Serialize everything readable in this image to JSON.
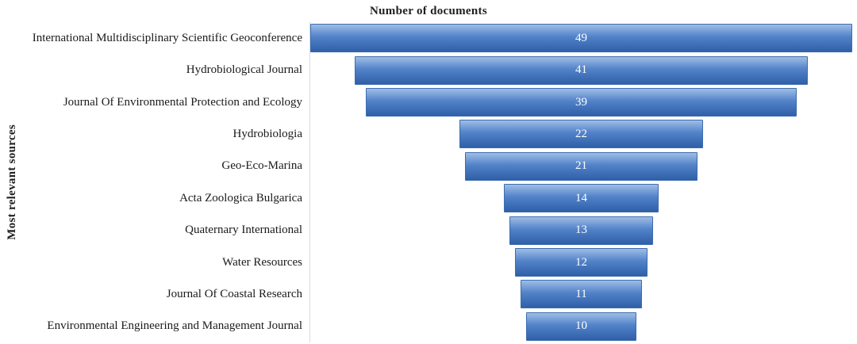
{
  "chart_data": {
    "type": "bar",
    "variant": "centered-funnel-horizontal-bars",
    "title": "Number of documents",
    "ylabel": "Most relevant sources",
    "xlabel": "",
    "categories": [
      "International Multidisciplinary Scientific Geoconference",
      "Hydrobiological Journal",
      "Journal Of Environmental Protection and Ecology",
      "Hydrobiologia",
      "Geo-Eco-Marina",
      "Acta Zoologica Bulgarica",
      "Quaternary International",
      "Water Resources",
      "Journal Of Coastal Research",
      "Environmental Engineering and Management Journal"
    ],
    "values": [
      49,
      41,
      39,
      22,
      21,
      14,
      13,
      12,
      11,
      10
    ],
    "xlim": [
      0,
      49
    ],
    "grid": false,
    "legend": "none",
    "bar_gradient": [
      "#9fbde6",
      "#5282c8",
      "#2f5fa7"
    ],
    "bar_border_color": "#3d6cb0",
    "value_label_color": "#ffffff",
    "axis_line_color": "#d6dbe4",
    "text_color": "#1a1a1a"
  }
}
